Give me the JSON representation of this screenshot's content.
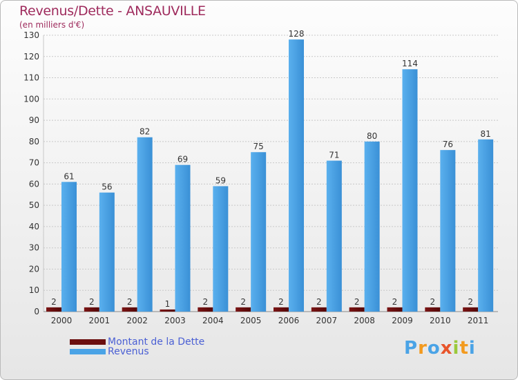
{
  "title": "Revenus/Dette - ANSAUVILLE",
  "subtitle": "(en milliers d'€)",
  "logo_text": "Proxiti",
  "colors": {
    "title": "#9e2a5c",
    "dette": "#6b0f0f",
    "revenus": "#4aa3e6",
    "legend_text": "#4a5fd4"
  },
  "legend": [
    {
      "label": "Montant de la Dette",
      "color": "#6b0f0f"
    },
    {
      "label": "Revenus",
      "color": "#4aa3e6"
    }
  ],
  "chart_data": {
    "type": "bar",
    "title": "Revenus/Dette - ANSAUVILLE",
    "subtitle": "(en milliers d'€)",
    "categories": [
      "2000",
      "2001",
      "2002",
      "2003",
      "2004",
      "2005",
      "2006",
      "2007",
      "2008",
      "2009",
      "2010",
      "2011"
    ],
    "series": [
      {
        "name": "Montant de la Dette",
        "values": [
          2,
          2,
          2,
          1,
          2,
          2,
          2,
          2,
          2,
          2,
          2,
          2
        ]
      },
      {
        "name": "Revenus",
        "values": [
          61,
          56,
          82,
          69,
          59,
          75,
          128,
          71,
          80,
          114,
          76,
          81
        ]
      }
    ],
    "ylim": [
      0,
      130
    ],
    "yticks": [
      0,
      10,
      20,
      30,
      40,
      50,
      60,
      70,
      80,
      90,
      100,
      110,
      120,
      130
    ],
    "grid": true,
    "legend_position": "bottom-left"
  }
}
